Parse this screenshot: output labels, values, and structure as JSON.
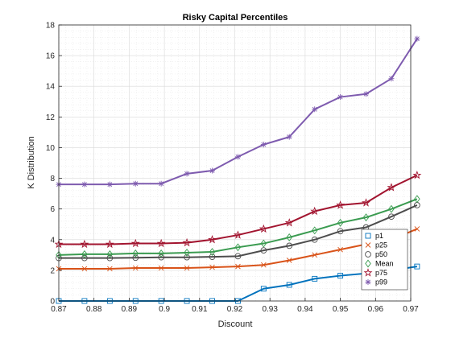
{
  "chart_data": {
    "type": "line",
    "title": "Risky Capital Percentiles",
    "xlabel": "Discount",
    "ylabel": "K Distribution",
    "xlim": [
      0.87,
      0.97
    ],
    "ylim": [
      0,
      18
    ],
    "xticks": [
      "0.87",
      "0.88",
      "0.89",
      "0.9",
      "0.91",
      "0.92",
      "0.93",
      "0.94",
      "0.95",
      "0.96",
      "0.97"
    ],
    "yticks": [
      "0",
      "2",
      "4",
      "6",
      "8",
      "10",
      "12",
      "14",
      "16",
      "18"
    ],
    "grid": true,
    "legend_position": "bottom-right",
    "x": [
      0.87,
      0.8773,
      0.8845,
      0.8918,
      0.8991,
      0.9064,
      0.9136,
      0.9209,
      0.9282,
      0.9355,
      0.9427,
      0.95,
      0.9573,
      0.9645,
      0.9718
    ],
    "series": [
      {
        "name": "p1",
        "color": "#0072BD",
        "marker": "square",
        "values": [
          0,
          0,
          0,
          0,
          0,
          0,
          0,
          0,
          0.8,
          1.05,
          1.45,
          1.65,
          1.8,
          2.0,
          2.25
        ]
      },
      {
        "name": "p25",
        "color": "#D95319",
        "marker": "x",
        "values": [
          2.1,
          2.1,
          2.1,
          2.15,
          2.15,
          2.15,
          2.2,
          2.25,
          2.35,
          2.65,
          3.0,
          3.35,
          3.7,
          4.0,
          4.7
        ]
      },
      {
        "name": "p50",
        "color": "#4d4d4d",
        "marker": "circle",
        "values": [
          2.8,
          2.8,
          2.8,
          2.82,
          2.85,
          2.85,
          2.88,
          2.92,
          3.3,
          3.6,
          4.0,
          4.55,
          4.8,
          5.5,
          6.25
        ]
      },
      {
        "name": "Mean",
        "color": "#3a9b50",
        "marker": "diamond",
        "values": [
          3.0,
          3.05,
          3.05,
          3.1,
          3.1,
          3.15,
          3.2,
          3.5,
          3.75,
          4.15,
          4.6,
          5.1,
          5.45,
          6.0,
          6.65
        ]
      },
      {
        "name": "p75",
        "color": "#A2142F",
        "marker": "pentagram",
        "values": [
          3.7,
          3.7,
          3.7,
          3.75,
          3.75,
          3.8,
          4.0,
          4.3,
          4.7,
          5.1,
          5.85,
          6.25,
          6.4,
          7.4,
          8.2
        ]
      },
      {
        "name": "p99",
        "color": "#7E5BAF",
        "marker": "asterisk",
        "values": [
          7.6,
          7.6,
          7.6,
          7.65,
          7.65,
          8.3,
          8.5,
          9.4,
          10.2,
          10.7,
          12.5,
          13.3,
          13.5,
          14.5,
          17.1
        ]
      }
    ]
  }
}
